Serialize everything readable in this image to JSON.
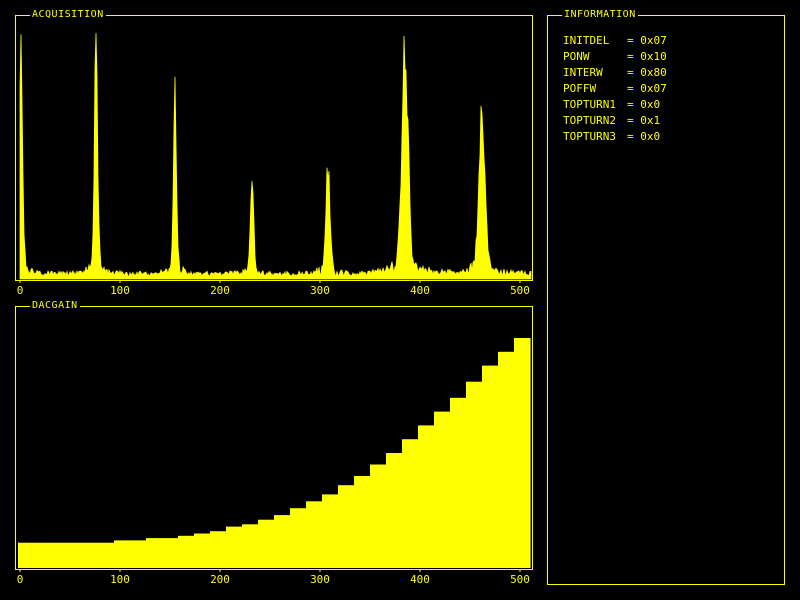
{
  "colors": {
    "background": "#000000",
    "foreground": "#ffff00"
  },
  "acquisition": {
    "title": "ACQUISITION"
  },
  "dacgain": {
    "title": "DACGAIN"
  },
  "information": {
    "title": "INFORMATION",
    "rows": [
      {
        "key": "INITDEL",
        "value": "= 0x07"
      },
      {
        "key": "PONW",
        "value": "= 0x10"
      },
      {
        "key": "INTERW",
        "value": "= 0x80"
      },
      {
        "key": "POFFW",
        "value": "= 0x07"
      },
      {
        "key": "TOPTURN1",
        "value": "= 0x0"
      },
      {
        "key": "TOPTURN2",
        "value": "= 0x1"
      },
      {
        "key": "TOPTURN3",
        "value": "= 0x0"
      }
    ]
  },
  "chart_data": [
    {
      "type": "area",
      "title": "ACQUISITION",
      "xlim": [
        0,
        511
      ],
      "ylim": [
        0,
        100
      ],
      "x_ticks": [
        0,
        100,
        200,
        300,
        400,
        500
      ],
      "grid": false,
      "baseline": 1,
      "noise_level": 2,
      "peaks": [
        {
          "x": 1,
          "height": 100,
          "width": 3
        },
        {
          "x": 76,
          "height": 100,
          "width": 3
        },
        {
          "x": 155,
          "height": 73,
          "width": 3
        },
        {
          "x": 232,
          "height": 41,
          "width": 3
        },
        {
          "x": 308,
          "height": 44,
          "width": 4
        },
        {
          "x": 385,
          "height": 98,
          "width": 6
        },
        {
          "x": 462,
          "height": 66,
          "width": 6
        }
      ]
    },
    {
      "type": "bar",
      "title": "DACGAIN",
      "xlim": [
        0,
        511
      ],
      "ylim": [
        0,
        100
      ],
      "x_ticks": [
        0,
        100,
        200,
        300,
        400,
        500
      ],
      "grid": false,
      "bin_width": 16,
      "values": [
        11,
        11,
        11,
        11,
        11,
        11,
        12,
        12,
        13,
        13,
        14,
        15,
        16,
        18,
        19,
        21,
        23,
        26,
        29,
        32,
        36,
        40,
        45,
        50,
        56,
        62,
        68,
        74,
        81,
        88,
        94,
        100
      ]
    }
  ]
}
